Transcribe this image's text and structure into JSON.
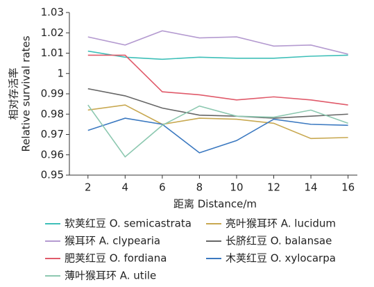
{
  "chart_data": {
    "type": "line",
    "ylabel": [
      "相对存活率",
      "Relative survival rates"
    ],
    "xlabel": "距离 Distance/m",
    "x": [
      2,
      4,
      6,
      8,
      10,
      12,
      14,
      16
    ],
    "xlim": [
      1,
      16.5
    ],
    "xticks": [
      2,
      4,
      6,
      8,
      10,
      12,
      14,
      16
    ],
    "ylim": [
      0.95,
      1.03
    ],
    "yticks": [
      0.95,
      0.96,
      0.97,
      0.98,
      0.99,
      1,
      1.01,
      1.02,
      1.03
    ],
    "series": [
      {
        "name": "软荚红豆 O. semicastrata",
        "color": "#3dbfb8",
        "values": [
          1.011,
          1.008,
          1.007,
          1.008,
          1.0075,
          1.0075,
          1.0085,
          1.009
        ]
      },
      {
        "name": "亮叶猴耳环 A. lucidum",
        "color": "#c8a850",
        "values": [
          0.982,
          0.9845,
          0.975,
          0.978,
          0.9775,
          0.9755,
          0.968,
          0.9685
        ]
      },
      {
        "name": "猴耳环 A. clypearia",
        "color": "#b49ad0",
        "values": [
          1.018,
          1.014,
          1.021,
          1.0175,
          1.018,
          1.0135,
          1.014,
          1.0095
        ]
      },
      {
        "name": "长脐红豆 O. balansae",
        "color": "#666666",
        "values": [
          0.9925,
          0.989,
          0.983,
          0.9795,
          0.979,
          0.978,
          0.979,
          0.98
        ]
      },
      {
        "name": "肥荚红豆 O. fordiana",
        "color": "#e05a6a",
        "values": [
          1.009,
          1.009,
          0.991,
          0.9895,
          0.987,
          0.9885,
          0.987,
          0.9845
        ]
      },
      {
        "name": "木荚红豆 O. xylocarpa",
        "color": "#3a78c0",
        "values": [
          0.972,
          0.978,
          0.975,
          0.961,
          0.967,
          0.9775,
          0.975,
          0.9745
        ]
      },
      {
        "name": "薄叶猴耳环 A. utile",
        "color": "#8cc8b0",
        "values": [
          0.9845,
          0.959,
          0.9745,
          0.984,
          0.979,
          0.9785,
          0.982,
          0.9755
        ]
      }
    ]
  }
}
